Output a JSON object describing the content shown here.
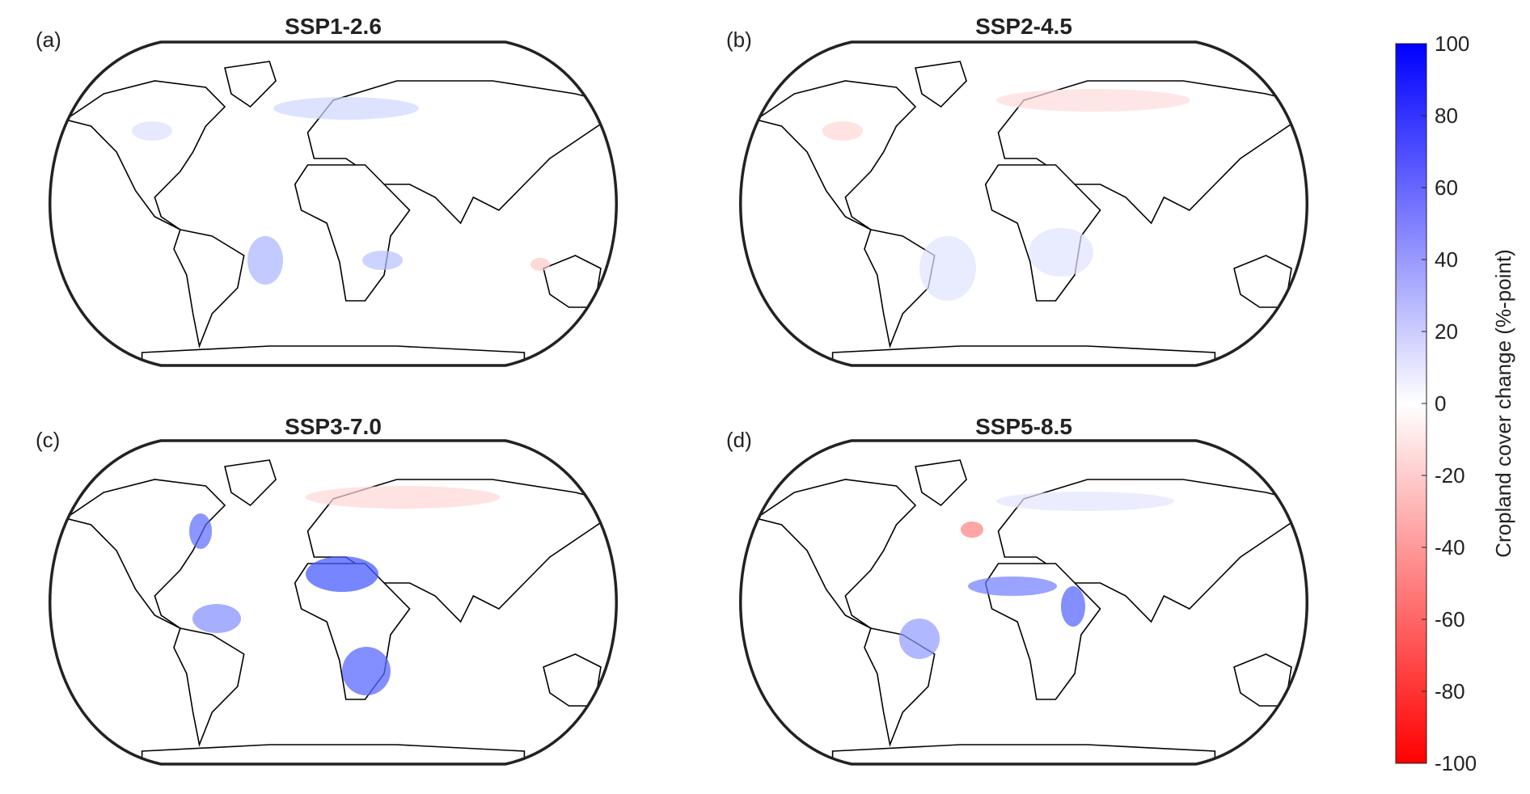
{
  "panels": [
    {
      "label": "(a)",
      "title": "SSP1-2.6"
    },
    {
      "label": "(b)",
      "title": "SSP2-4.5"
    },
    {
      "label": "(c)",
      "title": "SSP3-7.0"
    },
    {
      "label": "(d)",
      "title": "SSP5-8.5"
    }
  ],
  "colorbar": {
    "label": "Cropland cover change (%-point)",
    "lim": [
      -100,
      100
    ],
    "ticks": [
      -100,
      -80,
      -60,
      -40,
      -20,
      0,
      20,
      40,
      60,
      80,
      100
    ],
    "colors": [
      "#ff0000",
      "#ffffff",
      "#0000ff"
    ]
  }
}
